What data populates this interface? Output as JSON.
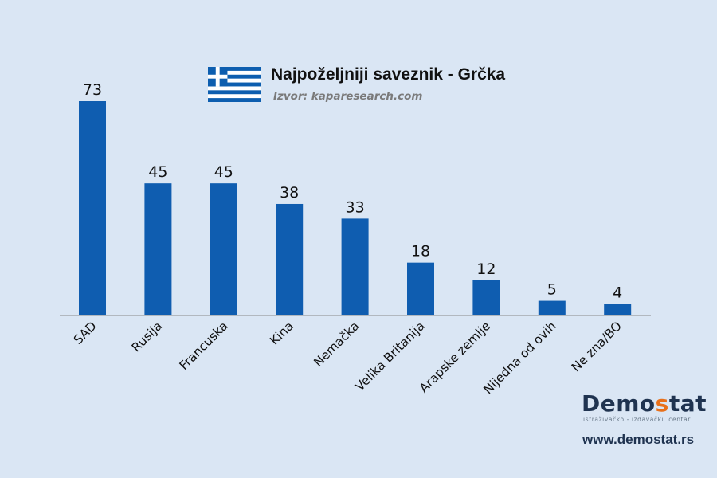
{
  "header": {
    "title": "Najpoželjniji saveznik - Grčka",
    "source": "Izvor: kaparesearch.com",
    "flag": "greece-flag"
  },
  "branding": {
    "logo_text": "Demostat",
    "logo_tagline": "istraživačko - izdavački  centar",
    "website": "www.demostat.rs"
  },
  "chart_data": {
    "type": "bar",
    "title": "Najpoželjniji saveznik - Grčka",
    "categories": [
      "SAD",
      "Rusija",
      "Francuska",
      "Kina",
      "Nemačka",
      "Velika Britanija",
      "Arapske zemlje",
      "Nijedna od ovih",
      "Ne zna/BO"
    ],
    "values": [
      73,
      45,
      45,
      38,
      33,
      18,
      12,
      5,
      4
    ],
    "ylim": [
      0,
      73
    ],
    "grid": false,
    "bar_color": "#0f5db0",
    "xlabel": "",
    "ylabel": ""
  }
}
